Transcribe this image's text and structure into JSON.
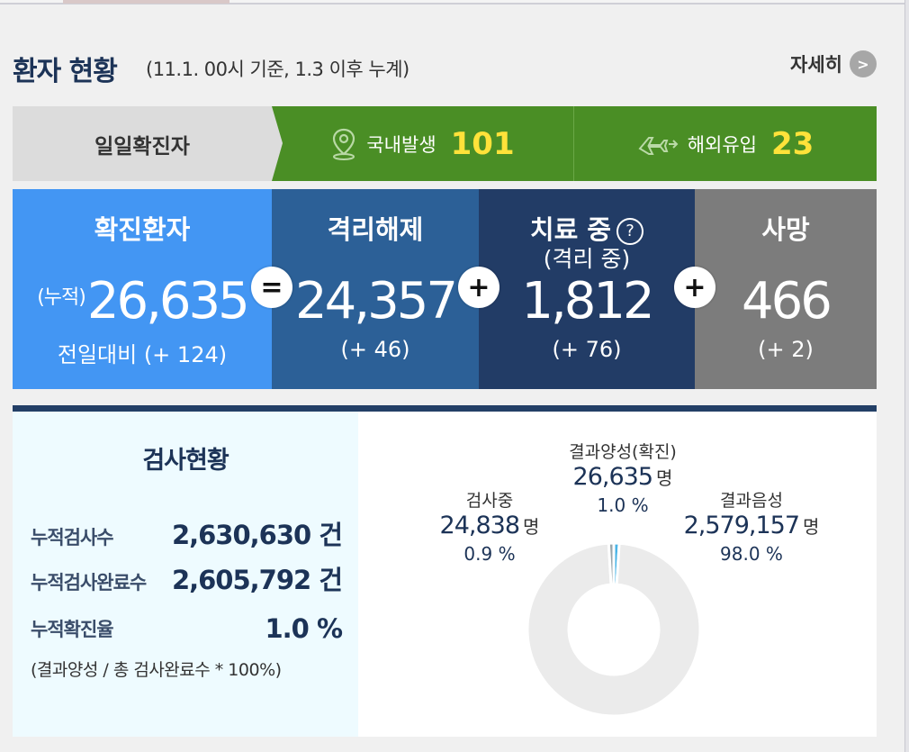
{
  "header": {
    "title": "환자 현황",
    "subtitle": "(11.1. 00시 기준, 1.3 이후 누계)",
    "more_label": "자세히",
    "more_icon_glyph": ">"
  },
  "daily": {
    "label": "일일확진자",
    "domestic": {
      "label": "국내발생",
      "value": "101",
      "icon": "map-pin-icon"
    },
    "overseas": {
      "label": "해외유입",
      "value": "23",
      "icon": "airplane-icon"
    }
  },
  "stats": {
    "confirmed": {
      "title": "확진환자",
      "prefix": "(누적)",
      "value": "26,635",
      "delta": "전일대비 (+ 124)"
    },
    "released": {
      "title": "격리해제",
      "value": "24,357",
      "delta": "(+ 46)"
    },
    "treatment": {
      "title": "치료 중",
      "subtitle": "(격리 중)",
      "help": "?",
      "value": "1,812",
      "delta": "(+ 76)"
    },
    "deaths": {
      "title": "사망",
      "value": "466",
      "delta": "(+ 2)"
    },
    "ops": [
      "=",
      "+",
      "+"
    ]
  },
  "testing": {
    "title": "검사현황",
    "rows": [
      {
        "label": "누적검사수",
        "value": "2,630,630 건"
      },
      {
        "label": "누적검사완료수",
        "value": "2,605,792 건"
      },
      {
        "label": "누적확진율",
        "value": "1.0 %"
      }
    ],
    "note": "(결과양성 / 총 검사완료수 * 100%)",
    "unit": "명"
  },
  "chart_data": {
    "type": "pie",
    "donut": true,
    "title": "",
    "series": [
      {
        "name": "결과양성(확진)",
        "value": 26635,
        "value_label": "26,635",
        "percent": "1.0 %",
        "color": "#4ab4e6"
      },
      {
        "name": "결과음성",
        "value": 2579157,
        "value_label": "2,579,157",
        "percent": "98.0 %",
        "color": "#ebebeb"
      },
      {
        "name": "검사중",
        "value": 24838,
        "value_label": "24,838",
        "percent": "0.9 %",
        "color": "#9aa6ab"
      }
    ]
  },
  "colors": {
    "navy": "#1c3357",
    "green": "#4a8e25",
    "yellow_number": "#ffe23a",
    "confirmed_blue": "#4396f3",
    "released_blue": "#2c6097",
    "treatment_navy": "#223c66",
    "deaths_gray": "#7c7c7c"
  }
}
